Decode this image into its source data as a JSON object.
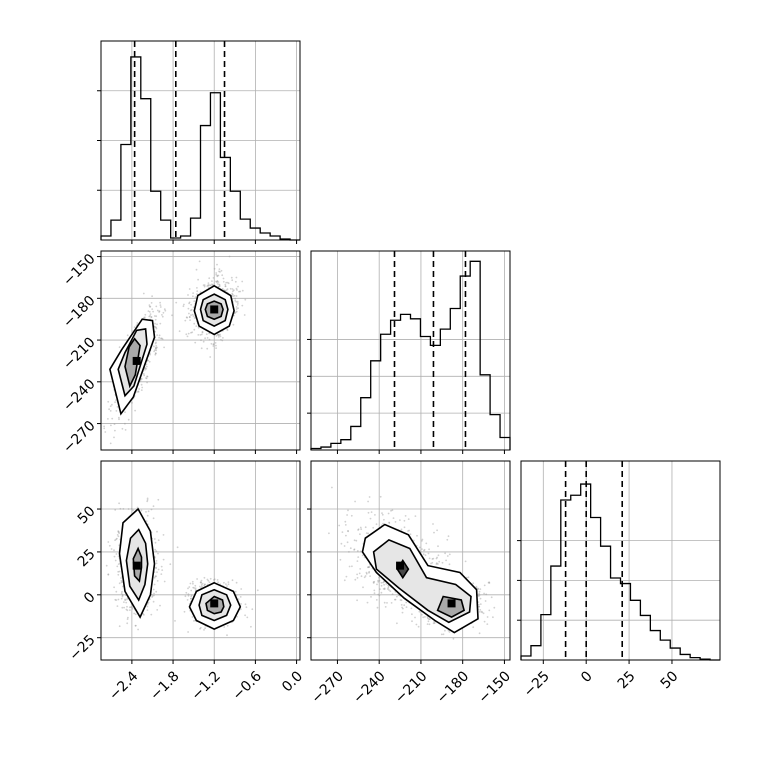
{
  "chart_data": {
    "type": "corner",
    "grid": true,
    "parameters": [
      {
        "range": [
          -2.85,
          0.05
        ],
        "ticks": [
          -2.4,
          -1.8,
          -1.2,
          -0.6,
          0.0
        ],
        "tick_labels": [
          "−2.4",
          "−1.8",
          "−1.2",
          "−0.6",
          "0.0"
        ],
        "quantiles": [
          -2.36,
          -1.76,
          -1.05
        ],
        "histogram": {
          "bin_edges": [
            -2.85,
            -2.705,
            -2.56,
            -2.415,
            -2.27,
            -2.125,
            -1.98,
            -1.835,
            -1.69,
            -1.545,
            -1.4,
            -1.255,
            -1.11,
            -0.965,
            -0.82,
            -0.675,
            -0.53,
            -0.385,
            -0.24,
            -0.095,
            0.05
          ],
          "counts": [
            4,
            20,
            96,
            184,
            142,
            49,
            20,
            2,
            4,
            22,
            115,
            148,
            83,
            49,
            21,
            12,
            7,
            4,
            1,
            0
          ],
          "ymax": 200
        }
      },
      {
        "range": [
          -289,
          -146
        ],
        "ticks": [
          -270,
          -240,
          -210,
          -180,
          -150
        ],
        "tick_labels": [
          "−270",
          "−240",
          "−210",
          "−180",
          "−150"
        ],
        "quantiles": [
          -229,
          -201,
          -178
        ],
        "histogram": {
          "bin_edges": [
            -289,
            -281.85,
            -274.7,
            -267.55,
            -260.4,
            -253.25,
            -246.1,
            -238.95,
            -231.8,
            -224.65,
            -217.5,
            -210.35,
            -203.2,
            -196.05,
            -188.9,
            -181.75,
            -174.6,
            -167.45,
            -160.3,
            -153.15,
            -146
          ],
          "counts": [
            2,
            4,
            9,
            14,
            32,
            71,
            121,
            157,
            176,
            184,
            178,
            154,
            142,
            164,
            192,
            236,
            256,
            102,
            48,
            17
          ],
          "ymax": 270
        }
      },
      {
        "range": [
          -38,
          78
        ],
        "ticks": [
          -25,
          0,
          25,
          50
        ],
        "tick_labels": [
          "−25",
          "0",
          "25",
          "50"
        ],
        "quantiles": [
          -12,
          0,
          21
        ],
        "histogram": {
          "bin_edges": [
            -38,
            -32.2,
            -26.4,
            -20.6,
            -14.8,
            -9,
            -3.2,
            2.6,
            8.4,
            14.2,
            20,
            25.8,
            31.6,
            37.4,
            43.2,
            49,
            54.8,
            60.6,
            66.4,
            72.2,
            78
          ],
          "counts": [
            5,
            18,
            57,
            118,
            201,
            207,
            221,
            179,
            143,
            103,
            96,
            75,
            56,
            37,
            25,
            15,
            7,
            3,
            1,
            0
          ],
          "ymax": 250
        }
      }
    ],
    "scatter_modes": [
      {
        "p1": -2.33,
        "p2": -225,
        "p3": 17,
        "s1": 0.13,
        "s2": 15,
        "s3": 11,
        "r12": 0.75,
        "r13": 0,
        "r23": -0.45
      },
      {
        "p1": -1.2,
        "p2": -188,
        "p3": -5,
        "s1": 0.14,
        "s2": 9,
        "s3": 5,
        "r12": 0.1,
        "r13": 0,
        "r23": 0
      }
    ],
    "contours": {
      "p2_vs_p1": [
        {
          "level": 1,
          "points": [
            [
              -2.72,
              -231
            ],
            [
              -2.56,
              -263
            ],
            [
              -2.38,
              -251
            ],
            [
              -2.07,
              -208
            ],
            [
              -2.1,
              -196
            ],
            [
              -2.25,
              -195
            ],
            [
              -2.55,
              -217
            ]
          ]
        },
        {
          "level": 2,
          "points": [
            [
              -2.6,
              -231
            ],
            [
              -2.5,
              -250
            ],
            [
              -2.37,
              -243
            ],
            [
              -2.18,
              -213
            ],
            [
              -2.2,
              -202
            ],
            [
              -2.33,
              -203
            ],
            [
              -2.5,
              -219
            ]
          ]
        },
        {
          "level": 3,
          "points": [
            [
              -2.5,
              -229
            ],
            [
              -2.43,
              -243
            ],
            [
              -2.35,
              -235
            ],
            [
              -2.28,
              -214
            ],
            [
              -2.36,
              -209
            ],
            [
              -2.44,
              -215
            ]
          ]
        },
        {
          "level": 1,
          "points": [
            [
              -1.2,
              -171
            ],
            [
              -0.96,
              -178
            ],
            [
              -0.91,
              -189
            ],
            [
              -0.98,
              -200
            ],
            [
              -1.2,
              -206
            ],
            [
              -1.42,
              -200
            ],
            [
              -1.49,
              -189
            ],
            [
              -1.44,
              -178
            ]
          ]
        },
        {
          "level": 2,
          "points": [
            [
              -1.2,
              -177
            ],
            [
              -1.04,
              -181
            ],
            [
              -1.0,
              -188
            ],
            [
              -1.04,
              -196
            ],
            [
              -1.2,
              -200
            ],
            [
              -1.36,
              -196
            ],
            [
              -1.4,
              -188
            ],
            [
              -1.36,
              -181
            ]
          ]
        },
        {
          "level": 3,
          "points": [
            [
              -1.2,
              -182
            ],
            [
              -1.1,
              -184
            ],
            [
              -1.07,
              -188
            ],
            [
              -1.1,
              -193
            ],
            [
              -1.2,
              -195
            ],
            [
              -1.3,
              -193
            ],
            [
              -1.33,
              -188
            ],
            [
              -1.3,
              -184
            ]
          ]
        }
      ],
      "p3_vs_p1": [
        {
          "level": 1,
          "points": [
            [
              -2.31,
              50
            ],
            [
              -2.13,
              37
            ],
            [
              -2.07,
              18
            ],
            [
              -2.13,
              0
            ],
            [
              -2.28,
              -13
            ],
            [
              -2.5,
              2
            ],
            [
              -2.58,
              24
            ],
            [
              -2.53,
              42
            ]
          ]
        },
        {
          "level": 2,
          "points": [
            [
              -2.3,
              38
            ],
            [
              -2.2,
              30
            ],
            [
              -2.17,
              18
            ],
            [
              -2.21,
              6
            ],
            [
              -2.3,
              -3
            ],
            [
              -2.43,
              5
            ],
            [
              -2.48,
              20
            ],
            [
              -2.42,
              33
            ]
          ]
        },
        {
          "level": 3,
          "points": [
            [
              -2.31,
              27
            ],
            [
              -2.26,
              22
            ],
            [
              -2.26,
              16
            ],
            [
              -2.29,
              8
            ],
            [
              -2.36,
              11
            ],
            [
              -2.38,
              21
            ]
          ]
        },
        {
          "level": 1,
          "points": [
            [
              -1.2,
              7
            ],
            [
              -0.92,
              2
            ],
            [
              -0.82,
              -7
            ],
            [
              -0.92,
              -15
            ],
            [
              -1.2,
              -20
            ],
            [
              -1.46,
              -15
            ],
            [
              -1.56,
              -7
            ],
            [
              -1.46,
              2
            ]
          ]
        },
        {
          "level": 2,
          "points": [
            [
              -1.2,
              3
            ],
            [
              -1.02,
              0
            ],
            [
              -0.96,
              -6
            ],
            [
              -1.02,
              -12
            ],
            [
              -1.2,
              -15
            ],
            [
              -1.38,
              -12
            ],
            [
              -1.42,
              -6
            ],
            [
              -1.38,
              0
            ]
          ]
        },
        {
          "level": 3,
          "points": [
            [
              -1.2,
              -1
            ],
            [
              -1.08,
              -3
            ],
            [
              -1.06,
              -7
            ],
            [
              -1.1,
              -10
            ],
            [
              -1.2,
              -11
            ],
            [
              -1.3,
              -9
            ],
            [
              -1.32,
              -5
            ]
          ]
        }
      ],
      "p3_vs_p2": [
        {
          "level": 1,
          "points": [
            [
              -250,
              33
            ],
            [
              -236,
              41
            ],
            [
              -219,
              35
            ],
            [
              -205,
              17
            ],
            [
              -182,
              13
            ],
            [
              -170,
              3
            ],
            [
              -169,
              -14
            ],
            [
              -186,
              -22
            ],
            [
              -200,
              -15
            ],
            [
              -222,
              -2
            ],
            [
              -242,
              13
            ],
            [
              -252,
              25
            ]
          ]
        },
        {
          "level": 2,
          "points": [
            [
              -244,
              25
            ],
            [
              -233,
              32
            ],
            [
              -218,
              27
            ],
            [
              -206,
              10
            ],
            [
              -185,
              6
            ],
            [
              -174,
              -1
            ],
            [
              -175,
              -10
            ],
            [
              -190,
              -16
            ],
            [
              -205,
              -9
            ],
            [
              -226,
              4
            ],
            [
              -242,
              15
            ]
          ]
        },
        {
          "level": 3,
          "points": [
            [
              -194,
              -1
            ],
            [
              -181,
              -3
            ],
            [
              -179,
              -9
            ],
            [
              -188,
              -13
            ],
            [
              -198,
              -9
            ]
          ]
        },
        {
          "level": 4,
          "points": [
            [
              -223,
              20
            ],
            [
              -219,
              15
            ],
            [
              -223,
              10
            ],
            [
              -227,
              15
            ]
          ]
        }
      ]
    }
  }
}
